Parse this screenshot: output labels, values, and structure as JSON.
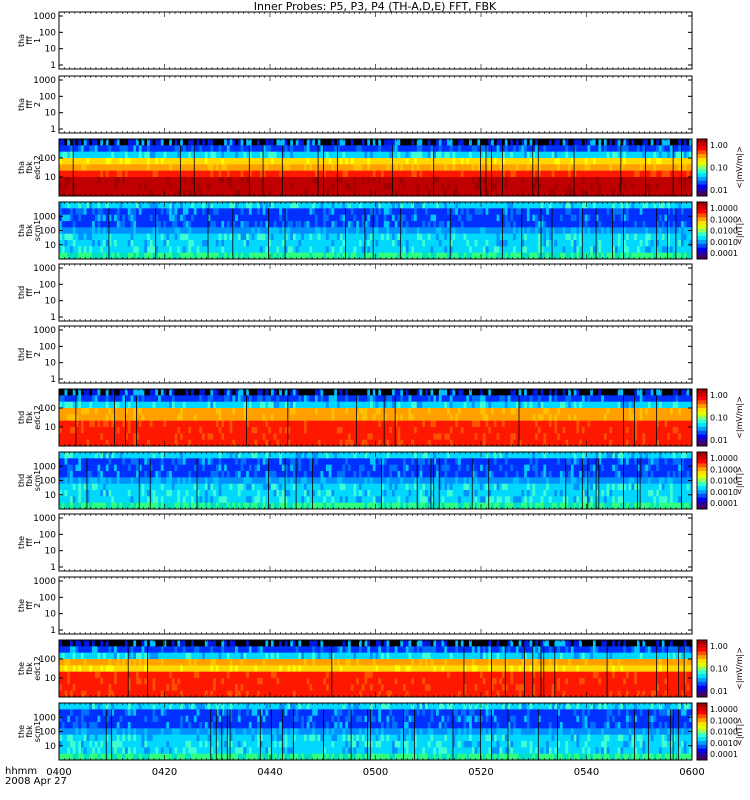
{
  "title": "Inner Probes: P5, P3, P4 (TH-A,D,E) FFT, FBK",
  "x_axis": {
    "label_line1": "hhmm",
    "label_line2": "2008 Apr 27",
    "ticks": [
      "0400",
      "0420",
      "0440",
      "0500",
      "0520",
      "0540",
      "0600"
    ]
  },
  "colors": {
    "background": "#ffffff",
    "frame": "#000000",
    "colortable": [
      "#4a0060",
      "#2800a8",
      "#0000ff",
      "#0050ff",
      "#00a0ff",
      "#00e0ff",
      "#30ffd0",
      "#90ff60",
      "#e0ff00",
      "#ffe000",
      "#ffa000",
      "#ff5000",
      "#ff0000",
      "#d00000",
      "#a00000"
    ]
  },
  "chart_data": [
    {
      "type": "heatmap",
      "panel": "tha-fff-1",
      "ylabel": [
        "tha",
        "fff",
        "1"
      ],
      "yscale": "log",
      "ylim": [
        1,
        1000
      ],
      "yticks": [
        "1000",
        "100",
        "10",
        "1"
      ],
      "empty": true
    },
    {
      "type": "heatmap",
      "panel": "tha-fff-2",
      "ylabel": [
        "tha",
        "fff",
        "2"
      ],
      "yscale": "log",
      "ylim": [
        1,
        1000
      ],
      "yticks": [
        "1000",
        "100",
        "10",
        "1"
      ],
      "empty": true
    },
    {
      "type": "heatmap",
      "panel": "tha-fbk-edc12",
      "ylabel": [
        "tha",
        "fbk",
        "edc12"
      ],
      "yscale": "log",
      "yticks": [
        "100",
        "10"
      ],
      "zlabel": "<|mV/m|>",
      "zticks": [
        "1.00",
        "0.10",
        "0.01"
      ],
      "bands": [
        "black",
        "blue",
        "cyan",
        "yellow",
        "orange",
        "red",
        "darkred",
        "darkred",
        "darkred"
      ]
    },
    {
      "type": "heatmap",
      "panel": "tha-fbk-scm1",
      "ylabel": [
        "tha",
        "fbk",
        "scm1"
      ],
      "yscale": "log",
      "yticks": [
        "1000",
        "100",
        "10"
      ],
      "zlabel": "<|nT|>",
      "zticks": [
        "1.0000",
        "0.1000",
        "0.0100",
        "0.0010",
        "0.0001"
      ],
      "bands": [
        "cyan",
        "blue",
        "blue",
        "blue",
        "lightblue",
        "cyan",
        "cyan",
        "cyan",
        "green"
      ]
    },
    {
      "type": "heatmap",
      "panel": "thd-fff-1",
      "ylabel": [
        "thd",
        "fff",
        "1"
      ],
      "yscale": "log",
      "ylim": [
        1,
        1000
      ],
      "yticks": [
        "1000",
        "100",
        "10",
        "1"
      ],
      "empty": true
    },
    {
      "type": "heatmap",
      "panel": "thd-fff-2",
      "ylabel": [
        "thd",
        "fff",
        "2"
      ],
      "yscale": "log",
      "ylim": [
        1,
        1000
      ],
      "yticks": [
        "1000",
        "100",
        "10",
        "1"
      ],
      "empty": true
    },
    {
      "type": "heatmap",
      "panel": "thd-fbk-edc12",
      "ylabel": [
        "thd",
        "fbk",
        "edc12"
      ],
      "yscale": "log",
      "yticks": [
        "100",
        "10"
      ],
      "zlabel": "<|mV/m|>",
      "zticks": [
        "1.00",
        "0.10",
        "0.01"
      ],
      "bands": [
        "black",
        "blue",
        "cyan",
        "orange",
        "orange",
        "red",
        "red",
        "red",
        "red"
      ]
    },
    {
      "type": "heatmap",
      "panel": "thd-fbk-scm1",
      "ylabel": [
        "thd",
        "fbk",
        "scm1"
      ],
      "yscale": "log",
      "yticks": [
        "1000",
        "100",
        "10"
      ],
      "zlabel": "<|nT|>",
      "zticks": [
        "1.0000",
        "0.1000",
        "0.0100",
        "0.0010",
        "0.0001"
      ],
      "bands": [
        "cyan",
        "blue",
        "blue",
        "blue",
        "lightblue",
        "cyan",
        "cyan",
        "cyan",
        "green"
      ]
    },
    {
      "type": "heatmap",
      "panel": "the-fff-1",
      "ylabel": [
        "the",
        "fff",
        "1"
      ],
      "yscale": "log",
      "ylim": [
        1,
        1000
      ],
      "yticks": [
        "1000",
        "100",
        "10",
        "1"
      ],
      "empty": true
    },
    {
      "type": "heatmap",
      "panel": "the-fff-2",
      "ylabel": [
        "the",
        "fff",
        "2"
      ],
      "yscale": "log",
      "ylim": [
        1,
        1000
      ],
      "yticks": [
        "1000",
        "100",
        "10",
        "1"
      ],
      "empty": true
    },
    {
      "type": "heatmap",
      "panel": "the-fbk-edc12",
      "ylabel": [
        "the",
        "fbk",
        "edc12"
      ],
      "yscale": "log",
      "yticks": [
        "100",
        "10"
      ],
      "zlabel": "<|mV/m|>",
      "zticks": [
        "1.00",
        "0.10",
        "0.01"
      ],
      "bands": [
        "black",
        "blue",
        "cyan",
        "orange",
        "yellow",
        "red",
        "red",
        "red",
        "red"
      ]
    },
    {
      "type": "heatmap",
      "panel": "the-fbk-scm1",
      "ylabel": [
        "the",
        "fbk",
        "scm1"
      ],
      "yscale": "log",
      "yticks": [
        "1000",
        "100",
        "10"
      ],
      "zlabel": "<|nT|>",
      "zticks": [
        "1.0000",
        "0.1000",
        "0.0100",
        "0.0010",
        "0.0001"
      ],
      "bands": [
        "cyan",
        "blue",
        "blue",
        "blue",
        "lightblue",
        "cyan",
        "cyan",
        "cyan",
        "green"
      ]
    }
  ]
}
